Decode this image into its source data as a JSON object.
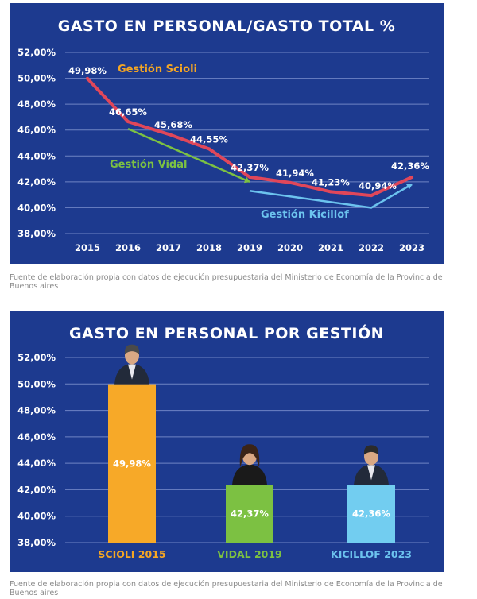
{
  "chart_data": [
    {
      "type": "line",
      "title": "GASTO EN PERSONAL/GASTO TOTAL %",
      "x": [
        "2015",
        "2016",
        "2017",
        "2018",
        "2019",
        "2020",
        "2021",
        "2022",
        "2023"
      ],
      "series": [
        {
          "name": "",
          "values": [
            49.98,
            46.65,
            45.68,
            44.55,
            42.37,
            41.94,
            41.23,
            40.94,
            42.36
          ],
          "labels": [
            "49,98%",
            "46,65%",
            "45,68%",
            "44,55%",
            "42,37%",
            "41,94%",
            "41,23%",
            "40,94%",
            "42,36%"
          ],
          "color": "#e0475a"
        }
      ],
      "yticks": [
        "52,00%",
        "50,00%",
        "48,00%",
        "46,00%",
        "44,00%",
        "42,00%",
        "40,00%",
        "38,00%"
      ],
      "ylim": [
        38,
        52
      ],
      "grid": true,
      "annotations": [
        {
          "text": "Gestión Scioli",
          "color": "#f5a623"
        },
        {
          "text": "Gestión Vidal",
          "color": "#7cc142"
        },
        {
          "text": "Gestión Kicillof",
          "color": "#6cc3ee"
        }
      ],
      "arrows": [
        {
          "name": "vidal-trend-arrow",
          "from": [
            "2016",
            46.1
          ],
          "to": [
            "2019",
            42.0
          ],
          "color": "#7cc142"
        },
        {
          "name": "kicillof-trend-arrow",
          "from": [
            "2019",
            41.3
          ],
          "via": [
            "2022",
            40.0
          ],
          "to": [
            "2023",
            41.8
          ],
          "color": "#6cc3ee"
        }
      ]
    },
    {
      "type": "bar",
      "title": "GASTO EN PERSONAL POR GESTIÓN",
      "categories": [
        "SCIOLI 2015",
        "VIDAL 2019",
        "KICILLOF 2023"
      ],
      "values": [
        49.98,
        42.37,
        42.36
      ],
      "labels": [
        "49,98%",
        "42,37%",
        "42,36%"
      ],
      "colors": [
        "#f7a928",
        "#7cc142",
        "#72cdf0"
      ],
      "category_colors": [
        "#f5a623",
        "#7cc142",
        "#6cc3ee"
      ],
      "yticks": [
        "52,00%",
        "50,00%",
        "48,00%",
        "46,00%",
        "44,00%",
        "42,00%",
        "40,00%",
        "38,00%"
      ],
      "ylim": [
        38,
        52
      ],
      "grid": true
    }
  ],
  "sources": [
    "Fuente de elaboración propia con datos de ejecución presupuestaria del Ministerio de Economía de la Provincia de Buenos aires",
    "Fuente de elaboración propia con datos de ejecución presupuestaria del Ministerio de Economía de la Provincia de Buenos aires"
  ],
  "colors": {
    "panel": "#1d3a8f",
    "grid": "#6f84c4",
    "text": "#ffffff"
  }
}
